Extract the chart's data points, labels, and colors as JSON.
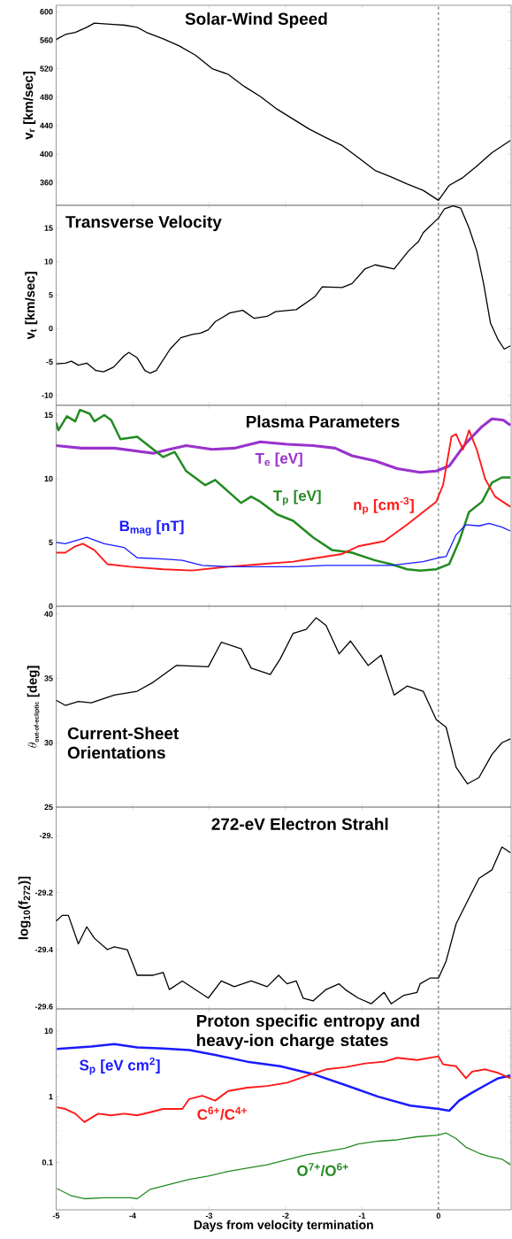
{
  "chart_data": [
    {
      "type": "line",
      "title": "Solar-Wind Speed",
      "ylabel": "v$_{r}$ [km/sec]",
      "xlim": [
        -5,
        0.95
      ],
      "xticks": [
        -5,
        -4,
        -3,
        -2,
        -1,
        0
      ],
      "ylim": [
        328,
        609
      ],
      "yticks": [
        360,
        400,
        440,
        480,
        520,
        560,
        600
      ],
      "tick_labels": "y",
      "ref_lines": [
        {
          "axis": "x",
          "value": 0,
          "line_style": "dashed"
        }
      ],
      "series": [
        {
          "color": "#000000",
          "x": [
            -5,
            -4.88,
            -4.75,
            -4.6,
            -4.5,
            -4.25,
            -4.1,
            -3.94,
            -3.82,
            -3.6,
            -3.39,
            -3.18,
            -2.96,
            -2.75,
            -2.54,
            -2.33,
            -2.11,
            -1.9,
            -1.69,
            -1.47,
            -1.26,
            -1.05,
            -0.83,
            -0.62,
            -0.41,
            -0.2,
            0,
            0.14,
            0.32,
            0.49,
            0.7,
            0.94
          ],
          "values": [
            561,
            568,
            571,
            578,
            584,
            582,
            581,
            578,
            571,
            562,
            552,
            539,
            520,
            512,
            495,
            481,
            463,
            449,
            435,
            423,
            412,
            395,
            377,
            368,
            358,
            349,
            335,
            356,
            367,
            382,
            402,
            419
          ]
        }
      ]
    },
    {
      "type": "line",
      "title": "Transverse Velocity",
      "ylabel": "v$_{t}$ [km/sec]",
      "xlim": [
        -5,
        0.95
      ],
      "xticks": [
        -5,
        -4,
        -3,
        -2,
        -1,
        0
      ],
      "ylim": [
        -11.5,
        18.4
      ],
      "yticks": [
        -10,
        -5,
        0,
        5,
        10,
        15
      ],
      "tick_labels": "y",
      "ref_lines": [
        {
          "axis": "x",
          "value": 0,
          "line_style": "dashed"
        }
      ],
      "series": [
        {
          "color": "#000000",
          "x": [
            -5,
            -4.88,
            -4.8,
            -4.71,
            -4.6,
            -4.48,
            -4.38,
            -4.25,
            -4.11,
            -4.05,
            -3.94,
            -3.84,
            -3.77,
            -3.69,
            -3.51,
            -3.37,
            -3.22,
            -3.11,
            -3.01,
            -2.92,
            -2.73,
            -2.56,
            -2.41,
            -2.24,
            -2.13,
            -1.86,
            -1.62,
            -1.52,
            -1.26,
            -1.13,
            -0.96,
            -0.83,
            -0.58,
            -0.39,
            -0.26,
            -0.2,
            0,
            0.08,
            0.19,
            0.29,
            0.4,
            0.5,
            0.59,
            0.68,
            0.78,
            0.86,
            0.94
          ],
          "values": [
            -5.3,
            -5.2,
            -4.9,
            -5.5,
            -5.2,
            -6.3,
            -6.5,
            -5.8,
            -4.1,
            -3.6,
            -4.4,
            -6.3,
            -6.7,
            -6.3,
            -3.1,
            -1.4,
            -0.9,
            -0.7,
            -0.2,
            1.0,
            2.3,
            2.7,
            1.5,
            1.8,
            2.5,
            2.8,
            4.7,
            6.2,
            6.1,
            6.7,
            8.9,
            9.5,
            8.9,
            11.6,
            13.0,
            14.3,
            16.5,
            17.9,
            18.3,
            18.0,
            15.0,
            11.6,
            6.7,
            0.8,
            -1.7,
            -3.1,
            -2.6
          ]
        }
      ]
    },
    {
      "type": "line",
      "title": "Plasma Parameters",
      "xlim": [
        -5,
        0.95
      ],
      "xticks": [
        -5,
        -4,
        -3,
        -2,
        -1,
        0
      ],
      "ylim": [
        0,
        15.76
      ],
      "yticks": [
        0,
        5,
        10,
        15
      ],
      "tick_labels": "y",
      "ref_lines": [
        {
          "axis": "x",
          "value": 0,
          "line_style": "dashed"
        }
      ],
      "series": [
        {
          "name": "T$_{e}$ [eV]",
          "color": "#9933cc",
          "x": [
            -5,
            -4.67,
            -4.24,
            -3.73,
            -3.52,
            -3.3,
            -2.96,
            -2.67,
            -2.33,
            -1.98,
            -1.64,
            -1.35,
            -1.13,
            -0.83,
            -0.54,
            -0.24,
            -0.03,
            0.14,
            0.36,
            0.57,
            0.7,
            0.85,
            0.94
          ],
          "values": [
            12.6,
            12.4,
            12.4,
            12.0,
            12.3,
            12.6,
            12.3,
            12.4,
            12.9,
            12.7,
            12.6,
            12.4,
            11.8,
            11.4,
            10.8,
            10.5,
            10.6,
            11.0,
            12.8,
            14.1,
            14.7,
            14.6,
            14.2
          ]
        },
        {
          "name": "T$_{p}$ [eV]",
          "color": "#228b22",
          "x": [
            -5,
            -4.97,
            -4.86,
            -4.75,
            -4.69,
            -4.56,
            -4.5,
            -4.37,
            -4.28,
            -4.16,
            -3.94,
            -3.73,
            -3.6,
            -3.45,
            -3.3,
            -3.05,
            -2.92,
            -2.75,
            -2.58,
            -2.45,
            -2.33,
            -2.11,
            -1.9,
            -1.64,
            -1.39,
            -1.13,
            -0.83,
            -0.62,
            -0.41,
            -0.24,
            -0.03,
            0.14,
            0.27,
            0.4,
            0.57,
            0.7,
            0.83,
            0.94
          ],
          "values": [
            14.4,
            13.8,
            14.9,
            14.5,
            15.4,
            15.1,
            14.5,
            15.0,
            14.6,
            13.1,
            13.3,
            12.3,
            11.7,
            12.1,
            10.6,
            9.5,
            9.9,
            9.0,
            8.1,
            8.6,
            8.2,
            7.2,
            6.7,
            5.4,
            4.4,
            4.2,
            3.6,
            3.3,
            2.9,
            2.8,
            2.9,
            3.3,
            5.1,
            7.4,
            8.2,
            9.7,
            10.1,
            10.1
          ]
        },
        {
          "name": "n$_{p}$ [cm$^{-3}$]",
          "color": "#ff1a1a",
          "x": [
            -5,
            -4.88,
            -4.75,
            -4.65,
            -4.5,
            -4.33,
            -4.03,
            -3.6,
            -3.22,
            -2.75,
            -2.33,
            -1.9,
            -1.69,
            -1.26,
            -1.05,
            -0.71,
            -0.41,
            -0.2,
            -0.03,
            0.06,
            0.17,
            0.23,
            0.32,
            0.4,
            0.5,
            0.61,
            0.74,
            0.94
          ],
          "values": [
            4.2,
            4.2,
            4.7,
            4.9,
            4.4,
            3.3,
            3.1,
            2.9,
            2.8,
            3.1,
            3.3,
            3.5,
            3.7,
            4.1,
            4.7,
            5.1,
            6.4,
            7.4,
            8.2,
            9.5,
            13.3,
            13.5,
            12.3,
            13.8,
            12.3,
            10.0,
            8.6,
            7.8
          ]
        },
        {
          "name": "B$_{mag}$ [nT]",
          "color": "#1a1aff",
          "x": [
            -5,
            -4.88,
            -4.6,
            -4.37,
            -4.11,
            -3.94,
            -3.6,
            -3.35,
            -3.09,
            -2.75,
            -2.33,
            -1.9,
            -1.47,
            -1.05,
            -0.62,
            -0.2,
            0,
            0.1,
            0.23,
            0.36,
            0.53,
            0.66,
            0.83,
            0.94
          ],
          "values": [
            5.0,
            4.9,
            5.4,
            4.9,
            4.6,
            3.8,
            3.7,
            3.6,
            3.2,
            3.1,
            3.1,
            3.1,
            3.2,
            3.2,
            3.2,
            3.5,
            3.8,
            3.9,
            5.6,
            6.4,
            6.3,
            6.5,
            6.2,
            5.9
          ]
        }
      ]
    },
    {
      "type": "line",
      "title": "Current-Sheet Orientations",
      "ylabel": "\\theta_{\\mbox{\\bfseries\\scriptsize out-of-ecliptic}}\\;\\mbox{\\bfseries [deg]}",
      "xlim": [
        -5,
        0.95
      ],
      "xticks": [
        -5,
        -4,
        -3,
        -2,
        -1,
        0
      ],
      "ylim": [
        25,
        40.6
      ],
      "yticks": [
        25,
        30,
        35,
        40
      ],
      "tick_labels": "y",
      "ref_lines": [
        {
          "axis": "x",
          "value": 0,
          "line_style": "dashed"
        }
      ],
      "series": [
        {
          "color": "#000000",
          "x": [
            -5,
            -4.88,
            -4.71,
            -4.54,
            -4.24,
            -3.94,
            -3.73,
            -3.43,
            -3.01,
            -2.84,
            -2.58,
            -2.45,
            -2.2,
            -2.07,
            -1.9,
            -1.73,
            -1.6,
            -1.47,
            -1.3,
            -1.15,
            -0.92,
            -0.75,
            -0.58,
            -0.41,
            -0.2,
            -0.03,
            0.1,
            0.23,
            0.38,
            0.53,
            0.7,
            0.83,
            0.94
          ],
          "values": [
            33.3,
            32.9,
            33.2,
            33.1,
            33.7,
            34.0,
            34.7,
            36.0,
            35.9,
            37.8,
            37.3,
            35.8,
            35.3,
            36.5,
            38.5,
            38.8,
            39.7,
            39.1,
            36.9,
            37.9,
            36.0,
            36.8,
            33.7,
            34.4,
            34.0,
            31.8,
            31.2,
            28.1,
            26.8,
            27.3,
            29.1,
            30.0,
            30.3
          ]
        }
      ]
    },
    {
      "type": "line",
      "title": "272-eV Electron Strahl",
      "ylabel": "log$_{10}$(f$_{272}$)]",
      "xlim": [
        -5,
        0.95
      ],
      "xticks": [
        -5,
        -4,
        -3,
        -2,
        -1,
        0
      ],
      "ylim": [
        -29.608,
        -28.9
      ],
      "yticks": [
        -29.6,
        -29.4,
        -29.2,
        {
          "value": -29,
          "label": "-29."
        }
      ],
      "tick_labels": "y",
      "ref_lines": [
        {
          "axis": "x",
          "value": 0,
          "line_style": "dashed"
        }
      ],
      "series": [
        {
          "color": "#000000",
          "x": [
            -5,
            -4.92,
            -4.84,
            -4.71,
            -4.6,
            -4.5,
            -4.33,
            -4.24,
            -4.07,
            -3.94,
            -3.73,
            -3.6,
            -3.52,
            -3.35,
            -3.18,
            -3.01,
            -2.84,
            -2.67,
            -2.45,
            -2.24,
            -2.09,
            -1.98,
            -1.86,
            -1.77,
            -1.64,
            -1.47,
            -1.3,
            -1.22,
            -1.05,
            -0.88,
            -0.71,
            -0.62,
            -0.45,
            -0.28,
            -0.24,
            -0.11,
            0,
            0.1,
            0.23,
            0.36,
            0.53,
            0.7,
            0.83,
            0.94
          ],
          "values": [
            -29.3,
            -29.28,
            -29.28,
            -29.38,
            -29.32,
            -29.36,
            -29.4,
            -29.39,
            -29.4,
            -29.49,
            -29.49,
            -29.48,
            -29.54,
            -29.51,
            -29.54,
            -29.57,
            -29.51,
            -29.53,
            -29.51,
            -29.53,
            -29.49,
            -29.52,
            -29.51,
            -29.57,
            -29.58,
            -29.54,
            -29.52,
            -29.54,
            -29.57,
            -29.59,
            -29.55,
            -29.59,
            -29.56,
            -29.55,
            -29.52,
            -29.5,
            -29.5,
            -29.44,
            -29.31,
            -29.24,
            -29.15,
            -29.12,
            -29.04,
            -29.06
          ]
        }
      ]
    },
    {
      "type": "line",
      "title": "Proton specific entropy and heavy-ion charge states",
      "xlabel": "Days from velocity termination",
      "xlim": [
        -5,
        0.95
      ],
      "xticks": [
        -5,
        -4,
        -3,
        -2,
        -1,
        0
      ],
      "ylim": [
        0.019,
        21.6
      ],
      "yticks": [
        0.1,
        1,
        10
      ],
      "log": true,
      "ref_lines": [
        {
          "axis": "x",
          "value": 0,
          "line_style": "dashed"
        }
      ],
      "series": [
        {
          "name": "S$_{p}$ [eV cm$^{2}$]",
          "color": "#1a1aff",
          "x": [
            -4.99,
            -4.54,
            -4.24,
            -3.94,
            -3.6,
            -3.26,
            -2.92,
            -2.5,
            -2.07,
            -1.64,
            -1.22,
            -0.79,
            -0.37,
            0,
            0.14,
            0.27,
            0.44,
            0.66,
            0.78,
            0.94
          ],
          "values": [
            5.3,
            5.8,
            6.3,
            5.6,
            5.4,
            5.1,
            4.3,
            3.4,
            2.9,
            2.2,
            1.5,
            1.0,
            0.73,
            0.65,
            0.61,
            0.87,
            1.15,
            1.6,
            1.9,
            2.1
          ]
        },
        {
          "name": "C$^{6+}$/C$^{4+}$",
          "color": "#ff1a1a",
          "x": [
            -4.99,
            -4.88,
            -4.75,
            -4.63,
            -4.45,
            -4.28,
            -4.11,
            -3.94,
            -3.77,
            -3.6,
            -3.35,
            -3.26,
            -3.09,
            -2.92,
            -2.75,
            -2.5,
            -2.24,
            -1.98,
            -1.73,
            -1.47,
            -1.22,
            -0.96,
            -0.71,
            -0.54,
            -0.28,
            0,
            0.06,
            0.23,
            0.36,
            0.44,
            0.61,
            0.78,
            0.94
          ],
          "values": [
            0.69,
            0.65,
            0.55,
            0.41,
            0.55,
            0.52,
            0.55,
            0.52,
            0.58,
            0.65,
            0.65,
            0.92,
            1.03,
            0.87,
            1.22,
            1.37,
            1.45,
            1.63,
            2.05,
            2.6,
            2.8,
            3.2,
            3.4,
            3.9,
            3.6,
            4.1,
            3.1,
            2.9,
            1.9,
            2.4,
            2.6,
            2.3,
            1.9
          ]
        },
        {
          "name": "O$^{7+}$/O$^{6+}$",
          "color": "#228b22",
          "x": [
            -4.99,
            -4.8,
            -4.63,
            -4.37,
            -4.03,
            -3.94,
            -3.77,
            -3.52,
            -3.26,
            -3.01,
            -2.75,
            -2.5,
            -2.24,
            -1.98,
            -1.73,
            -1.47,
            -1.22,
            -1.05,
            -0.79,
            -0.54,
            -0.28,
            0,
            0.1,
            0.23,
            0.36,
            0.53,
            0.66,
            0.83,
            0.94
          ],
          "values": [
            0.04,
            0.031,
            0.028,
            0.029,
            0.029,
            0.028,
            0.039,
            0.046,
            0.055,
            0.062,
            0.073,
            0.082,
            0.092,
            0.11,
            0.13,
            0.146,
            0.164,
            0.19,
            0.21,
            0.22,
            0.245,
            0.26,
            0.28,
            0.23,
            0.17,
            0.138,
            0.123,
            0.112,
            0.092
          ]
        }
      ]
    }
  ]
}
